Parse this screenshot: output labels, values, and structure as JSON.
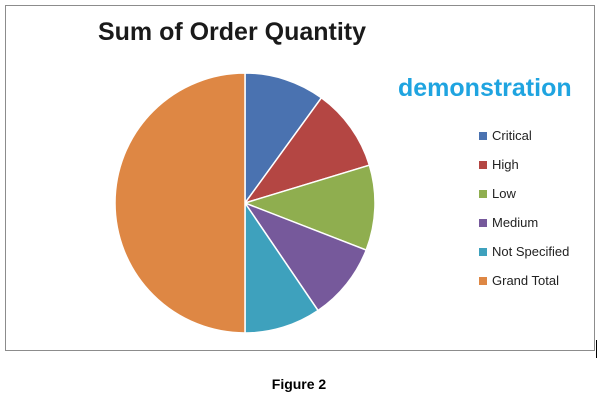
{
  "chart_data": {
    "type": "pie",
    "title": "Sum of Order Quantity",
    "legend_position": "right",
    "categories": [
      "Critical",
      "High",
      "Low",
      "Medium",
      "Not Specified",
      "Grand Total"
    ],
    "values": [
      10.0,
      10.3,
      10.6,
      9.6,
      9.5,
      50.0
    ],
    "colors": [
      "#4a72b0",
      "#b44643",
      "#8fae4f",
      "#76599b",
      "#3ea1bd",
      "#de8744"
    ]
  },
  "watermark": "demonstration",
  "caption": "Figure 2"
}
